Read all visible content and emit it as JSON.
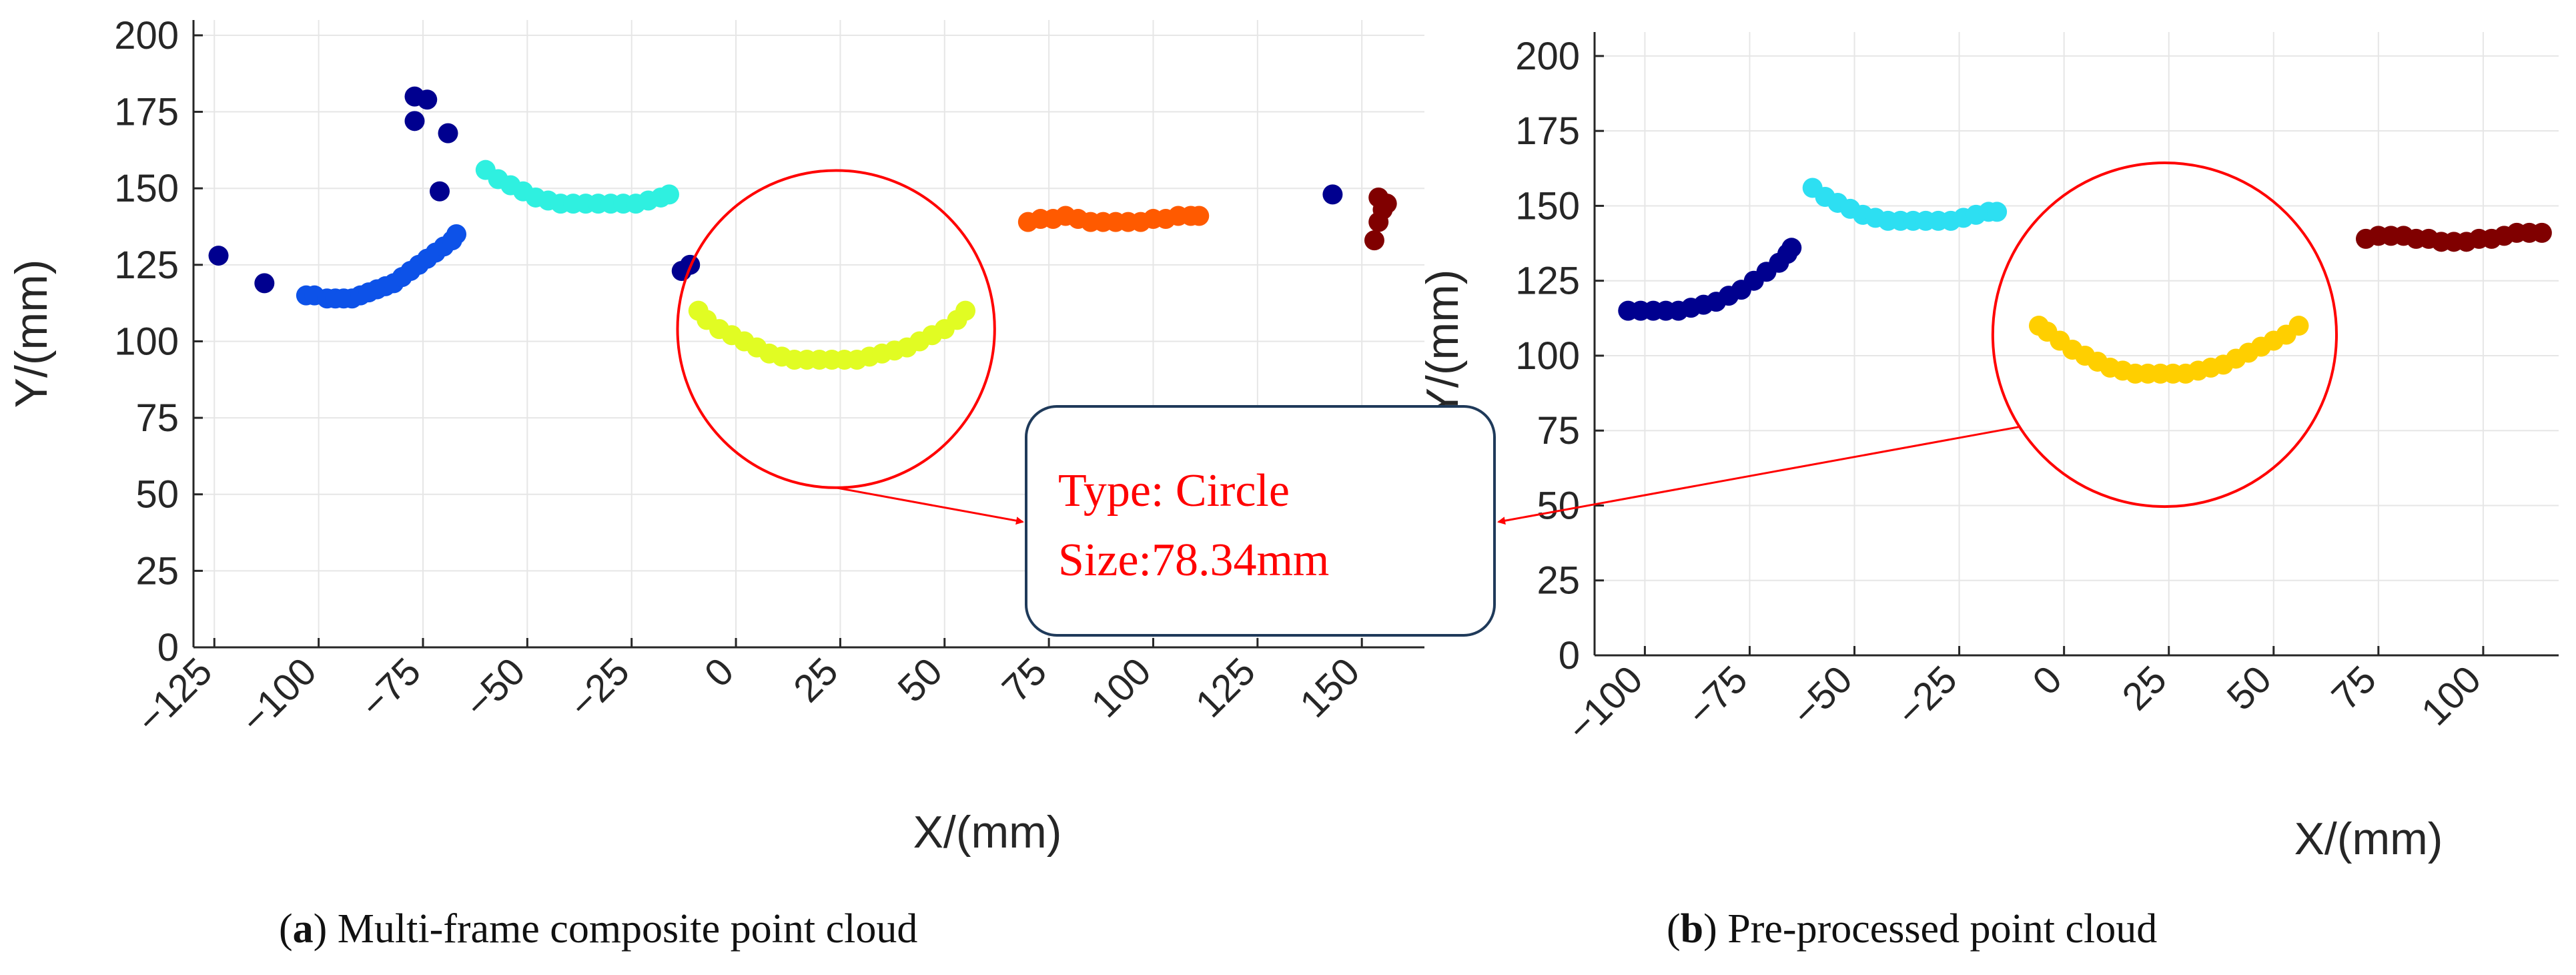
{
  "chart_data": [
    {
      "type": "scatter",
      "id": "a",
      "caption_letter": "a",
      "caption_text": ") Multi-frame composite point cloud",
      "xlabel": "X/(mm)",
      "ylabel": "Y/(mm)",
      "xlim": [
        -130,
        165
      ],
      "ylim": [
        0,
        205
      ],
      "xticks": [
        -125,
        -100,
        -75,
        -50,
        -25,
        0,
        25,
        50,
        75,
        100,
        125,
        150
      ],
      "xtick_labels": [
        "−125",
        "−100",
        "−75",
        "−50",
        "−25",
        "0",
        "25",
        "50",
        "75",
        "100",
        "125",
        "150"
      ],
      "yticks": [
        0,
        25,
        50,
        75,
        100,
        125,
        150,
        175,
        200
      ],
      "ytick_labels": [
        "0",
        "25",
        "50",
        "75",
        "100",
        "125",
        "150",
        "175",
        "200"
      ],
      "grid": true,
      "circle": {
        "cx": 24,
        "cy": 104,
        "r": 38
      },
      "series": [
        {
          "name": "noise-navy",
          "color": "#00008f",
          "points": [
            [
              -124,
              128
            ],
            [
              -113,
              119
            ],
            [
              -77,
              180
            ],
            [
              -74,
              179
            ],
            [
              -77,
              172
            ],
            [
              -69,
              168
            ],
            [
              -71,
              149
            ],
            [
              -13,
              123
            ],
            [
              -11,
              125
            ],
            [
              143,
              148
            ]
          ]
        },
        {
          "name": "cluster-blue",
          "color": "#0d52e8",
          "points": [
            [
              -103,
              115
            ],
            [
              -101,
              115
            ],
            [
              -98,
              114
            ],
            [
              -96,
              114
            ],
            [
              -94,
              114
            ],
            [
              -92,
              114
            ],
            [
              -90,
              115
            ],
            [
              -88,
              116
            ],
            [
              -86,
              117
            ],
            [
              -84,
              118
            ],
            [
              -82,
              119
            ],
            [
              -80,
              121
            ],
            [
              -78,
              123
            ],
            [
              -76,
              125
            ],
            [
              -74,
              127
            ],
            [
              -72,
              129
            ],
            [
              -70,
              131
            ],
            [
              -68,
              133
            ],
            [
              -67,
              135
            ]
          ]
        },
        {
          "name": "cluster-cyan",
          "color": "#2ff0e0",
          "points": [
            [
              -60,
              156
            ],
            [
              -57,
              153
            ],
            [
              -54,
              151
            ],
            [
              -51,
              149
            ],
            [
              -48,
              147
            ],
            [
              -45,
              146
            ],
            [
              -42,
              145
            ],
            [
              -39,
              145
            ],
            [
              -36,
              145
            ],
            [
              -33,
              145
            ],
            [
              -30,
              145
            ],
            [
              -27,
              145
            ],
            [
              -24,
              145
            ],
            [
              -21,
              146
            ],
            [
              -18,
              147
            ],
            [
              -16,
              148
            ]
          ]
        },
        {
          "name": "cluster-yellow-green",
          "color": "#e1fc23",
          "points": [
            [
              -9,
              110
            ],
            [
              -7,
              107
            ],
            [
              -4,
              104
            ],
            [
              -1,
              102
            ],
            [
              2,
              100
            ],
            [
              5,
              98
            ],
            [
              8,
              96
            ],
            [
              11,
              95
            ],
            [
              14,
              94
            ],
            [
              17,
              94
            ],
            [
              20,
              94
            ],
            [
              23,
              94
            ],
            [
              26,
              94
            ],
            [
              29,
              94
            ],
            [
              32,
              95
            ],
            [
              35,
              96
            ],
            [
              38,
              97
            ],
            [
              41,
              98
            ],
            [
              44,
              100
            ],
            [
              47,
              102
            ],
            [
              50,
              104
            ],
            [
              53,
              107
            ],
            [
              55,
              110
            ]
          ]
        },
        {
          "name": "cluster-orange",
          "color": "#ff5a00",
          "points": [
            [
              70,
              139
            ],
            [
              73,
              140
            ],
            [
              76,
              140
            ],
            [
              79,
              141
            ],
            [
              82,
              140
            ],
            [
              85,
              139
            ],
            [
              88,
              139
            ],
            [
              91,
              139
            ],
            [
              94,
              139
            ],
            [
              97,
              139
            ],
            [
              100,
              140
            ],
            [
              103,
              140
            ],
            [
              106,
              141
            ],
            [
              109,
              141
            ],
            [
              111,
              141
            ]
          ]
        },
        {
          "name": "cluster-darkred",
          "color": "#800000",
          "points": [
            [
              154,
              147
            ],
            [
              155,
              143
            ],
            [
              154,
              139
            ],
            [
              153,
              133
            ],
            [
              156,
              145
            ]
          ]
        }
      ]
    },
    {
      "type": "scatter",
      "id": "b",
      "caption_letter": "b",
      "caption_text": ") Pre-processed point cloud",
      "xlabel": "X/(mm)",
      "ylabel": "Y/(mm)",
      "xlim": [
        -112,
        118
      ],
      "ylim": [
        0,
        208
      ],
      "xticks": [
        -100,
        -75,
        -50,
        -25,
        0,
        25,
        50,
        75,
        100
      ],
      "xtick_labels": [
        "−100",
        "−75",
        "−50",
        "−25",
        "0",
        "25",
        "50",
        "75",
        "100"
      ],
      "yticks": [
        0,
        25,
        50,
        75,
        100,
        125,
        150,
        175,
        200
      ],
      "ytick_labels": [
        "0",
        "25",
        "50",
        "75",
        "100",
        "125",
        "150",
        "175",
        "200"
      ],
      "grid": true,
      "circle": {
        "cx": 24,
        "cy": 107,
        "r": 41
      },
      "series": [
        {
          "name": "cluster-navy",
          "color": "#00008f",
          "points": [
            [
              -104,
              115
            ],
            [
              -101,
              115
            ],
            [
              -98,
              115
            ],
            [
              -95,
              115
            ],
            [
              -92,
              115
            ],
            [
              -89,
              116
            ],
            [
              -86,
              117
            ],
            [
              -83,
              118
            ],
            [
              -80,
              120
            ],
            [
              -77,
              122
            ],
            [
              -74,
              125
            ],
            [
              -71,
              128
            ],
            [
              -68,
              131
            ],
            [
              -66,
              134
            ],
            [
              -65,
              136
            ]
          ]
        },
        {
          "name": "cluster-cyan",
          "color": "#2ddff2",
          "points": [
            [
              -60,
              156
            ],
            [
              -57,
              153
            ],
            [
              -54,
              151
            ],
            [
              -51,
              149
            ],
            [
              -48,
              147
            ],
            [
              -45,
              146
            ],
            [
              -42,
              145
            ],
            [
              -39,
              145
            ],
            [
              -36,
              145
            ],
            [
              -33,
              145
            ],
            [
              -30,
              145
            ],
            [
              -27,
              145
            ],
            [
              -24,
              146
            ],
            [
              -21,
              147
            ],
            [
              -18,
              148
            ],
            [
              -16,
              148
            ]
          ]
        },
        {
          "name": "cluster-yellow",
          "color": "#ffcf00",
          "points": [
            [
              -6,
              110
            ],
            [
              -4,
              108
            ],
            [
              -1,
              105
            ],
            [
              2,
              102
            ],
            [
              5,
              100
            ],
            [
              8,
              98
            ],
            [
              11,
              96
            ],
            [
              14,
              95
            ],
            [
              17,
              94
            ],
            [
              20,
              94
            ],
            [
              23,
              94
            ],
            [
              26,
              94
            ],
            [
              29,
              94
            ],
            [
              32,
              95
            ],
            [
              35,
              96
            ],
            [
              38,
              97
            ],
            [
              41,
              99
            ],
            [
              44,
              101
            ],
            [
              47,
              103
            ],
            [
              50,
              105
            ],
            [
              53,
              107
            ],
            [
              56,
              110
            ]
          ]
        },
        {
          "name": "cluster-darkred",
          "color": "#800000",
          "points": [
            [
              72,
              139
            ],
            [
              75,
              140
            ],
            [
              78,
              140
            ],
            [
              81,
              140
            ],
            [
              84,
              139
            ],
            [
              87,
              139
            ],
            [
              90,
              138
            ],
            [
              93,
              138
            ],
            [
              96,
              138
            ],
            [
              99,
              139
            ],
            [
              102,
              139
            ],
            [
              105,
              140
            ],
            [
              108,
              141
            ],
            [
              111,
              141
            ],
            [
              114,
              141
            ]
          ]
        }
      ]
    }
  ],
  "annotation": {
    "line1": "Type: Circle",
    "line2": "Size:78.34mm"
  }
}
